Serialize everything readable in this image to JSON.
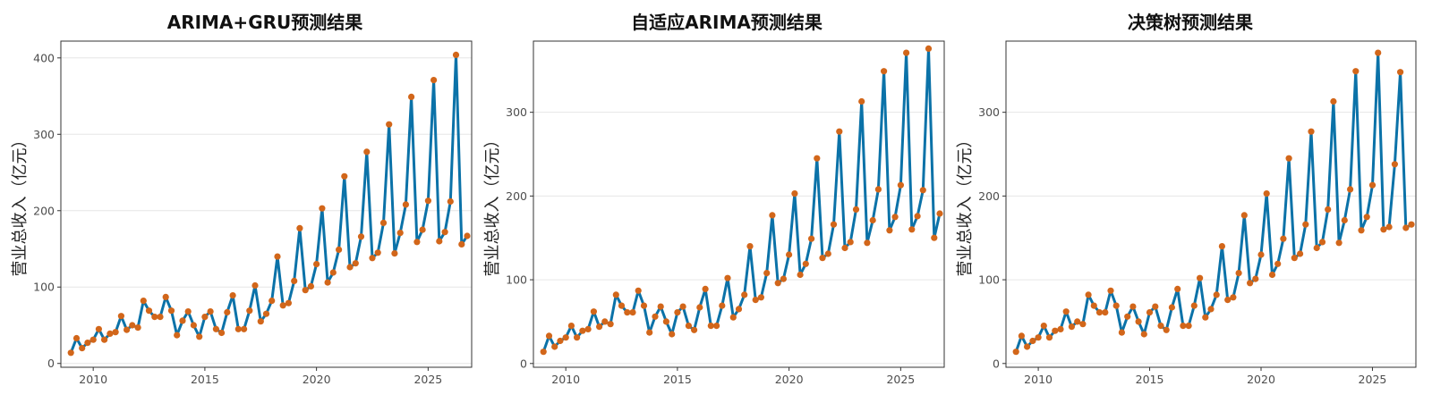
{
  "colors": {
    "line": "#0b72a8",
    "point": "#d2661a",
    "grid": "#e6e6e6",
    "frame": "#333333"
  },
  "chart_data": [
    {
      "type": "line",
      "title": "ARIMA+GRU预测结果",
      "xlabel": "",
      "ylabel": "营业总收入（亿元）",
      "xlim": [
        2008.55,
        2026.95
      ],
      "ylim": [
        -5,
        422
      ],
      "xticks": [
        2010,
        2015,
        2020,
        2025
      ],
      "yticks": [
        0,
        100,
        200,
        300,
        400
      ],
      "grid": "horizontal",
      "x": [
        2009.0,
        2009.25,
        2009.5,
        2009.75,
        2010.0,
        2010.25,
        2010.5,
        2010.75,
        2011.0,
        2011.25,
        2011.5,
        2011.75,
        2012.0,
        2012.25,
        2012.5,
        2012.75,
        2013.0,
        2013.25,
        2013.5,
        2013.75,
        2014.0,
        2014.25,
        2014.5,
        2014.75,
        2015.0,
        2015.25,
        2015.5,
        2015.75,
        2016.0,
        2016.25,
        2016.5,
        2016.75,
        2017.0,
        2017.25,
        2017.5,
        2017.75,
        2018.0,
        2018.25,
        2018.5,
        2018.75,
        2019.0,
        2019.25,
        2019.5,
        2019.75,
        2020.0,
        2020.25,
        2020.5,
        2020.75,
        2021.0,
        2021.25,
        2021.5,
        2021.75,
        2022.0,
        2022.25,
        2022.5,
        2022.75,
        2023.0,
        2023.25,
        2023.5,
        2023.75,
        2024.0,
        2024.25,
        2024.5,
        2024.75,
        2025.0,
        2025.25,
        2025.5,
        2025.75,
        2026.0,
        2026.25,
        2026.5,
        2026.75
      ],
      "y": [
        14,
        33,
        20,
        27,
        31,
        45,
        31,
        39,
        41,
        62,
        44,
        50,
        47,
        82,
        69,
        61,
        61,
        87,
        69,
        37,
        56,
        68,
        50,
        35,
        61,
        68,
        45,
        40,
        67,
        89,
        45,
        45,
        69,
        102,
        55,
        65,
        82,
        140,
        76,
        79,
        108,
        177,
        96,
        101,
        130,
        203,
        106,
        119,
        149,
        245,
        126,
        131,
        166,
        277,
        138,
        145,
        184,
        313,
        144,
        171,
        208,
        349,
        159,
        175,
        213,
        371,
        160,
        172,
        212,
        404,
        156,
        167
      ]
    },
    {
      "type": "line",
      "title": "自适应ARIMA预测结果",
      "xlabel": "",
      "ylabel": "营业总收入（亿元）",
      "xlim": [
        2008.55,
        2026.95
      ],
      "ylim": [
        -4.5,
        385
      ],
      "xticks": [
        2010,
        2015,
        2020,
        2025
      ],
      "yticks": [
        0,
        100,
        200,
        300
      ],
      "grid": "horizontal",
      "x": [
        2009.0,
        2009.25,
        2009.5,
        2009.75,
        2010.0,
        2010.25,
        2010.5,
        2010.75,
        2011.0,
        2011.25,
        2011.5,
        2011.75,
        2012.0,
        2012.25,
        2012.5,
        2012.75,
        2013.0,
        2013.25,
        2013.5,
        2013.75,
        2014.0,
        2014.25,
        2014.5,
        2014.75,
        2015.0,
        2015.25,
        2015.5,
        2015.75,
        2016.0,
        2016.25,
        2016.5,
        2016.75,
        2017.0,
        2017.25,
        2017.5,
        2017.75,
        2018.0,
        2018.25,
        2018.5,
        2018.75,
        2019.0,
        2019.25,
        2019.5,
        2019.75,
        2020.0,
        2020.25,
        2020.5,
        2020.75,
        2021.0,
        2021.25,
        2021.5,
        2021.75,
        2022.0,
        2022.25,
        2022.5,
        2022.75,
        2023.0,
        2023.25,
        2023.5,
        2023.75,
        2024.0,
        2024.25,
        2024.5,
        2024.75,
        2025.0,
        2025.25,
        2025.5,
        2025.75,
        2026.0,
        2026.25,
        2026.5,
        2026.75
      ],
      "y": [
        14,
        33,
        20,
        27,
        31,
        45,
        31,
        39,
        41,
        62,
        44,
        50,
        47,
        82,
        69,
        61,
        61,
        87,
        69,
        37,
        56,
        68,
        50,
        35,
        61,
        68,
        45,
        40,
        67,
        89,
        45,
        45,
        69,
        102,
        55,
        65,
        82,
        140,
        76,
        79,
        108,
        177,
        96,
        101,
        130,
        203,
        106,
        119,
        149,
        245,
        126,
        131,
        166,
        277,
        138,
        145,
        184,
        313,
        144,
        171,
        208,
        349,
        159,
        175,
        213,
        371,
        160,
        176,
        207,
        376,
        150,
        179
      ]
    },
    {
      "type": "line",
      "title": "决策树预测结果",
      "xlabel": "",
      "ylabel": "营业总收入（亿元）",
      "xlim": [
        2008.55,
        2026.95
      ],
      "ylim": [
        -4.5,
        385
      ],
      "xticks": [
        2010,
        2015,
        2020,
        2025
      ],
      "yticks": [
        0,
        100,
        200,
        300
      ],
      "grid": "horizontal",
      "x": [
        2009.0,
        2009.25,
        2009.5,
        2009.75,
        2010.0,
        2010.25,
        2010.5,
        2010.75,
        2011.0,
        2011.25,
        2011.5,
        2011.75,
        2012.0,
        2012.25,
        2012.5,
        2012.75,
        2013.0,
        2013.25,
        2013.5,
        2013.75,
        2014.0,
        2014.25,
        2014.5,
        2014.75,
        2015.0,
        2015.25,
        2015.5,
        2015.75,
        2016.0,
        2016.25,
        2016.5,
        2016.75,
        2017.0,
        2017.25,
        2017.5,
        2017.75,
        2018.0,
        2018.25,
        2018.5,
        2018.75,
        2019.0,
        2019.25,
        2019.5,
        2019.75,
        2020.0,
        2020.25,
        2020.5,
        2020.75,
        2021.0,
        2021.25,
        2021.5,
        2021.75,
        2022.0,
        2022.25,
        2022.5,
        2022.75,
        2023.0,
        2023.25,
        2023.5,
        2023.75,
        2024.0,
        2024.25,
        2024.5,
        2024.75,
        2025.0,
        2025.25,
        2025.5,
        2025.75,
        2026.0,
        2026.25,
        2026.5,
        2026.75
      ],
      "y": [
        14,
        33,
        20,
        27,
        31,
        45,
        31,
        39,
        41,
        62,
        44,
        50,
        47,
        82,
        69,
        61,
        61,
        87,
        69,
        37,
        56,
        68,
        50,
        35,
        61,
        68,
        45,
        40,
        67,
        89,
        45,
        45,
        69,
        102,
        55,
        65,
        82,
        140,
        76,
        79,
        108,
        177,
        96,
        101,
        130,
        203,
        106,
        119,
        149,
        245,
        126,
        131,
        166,
        277,
        138,
        145,
        184,
        313,
        144,
        171,
        208,
        349,
        159,
        175,
        213,
        371,
        160,
        163,
        238,
        348,
        162,
        166
      ]
    }
  ]
}
